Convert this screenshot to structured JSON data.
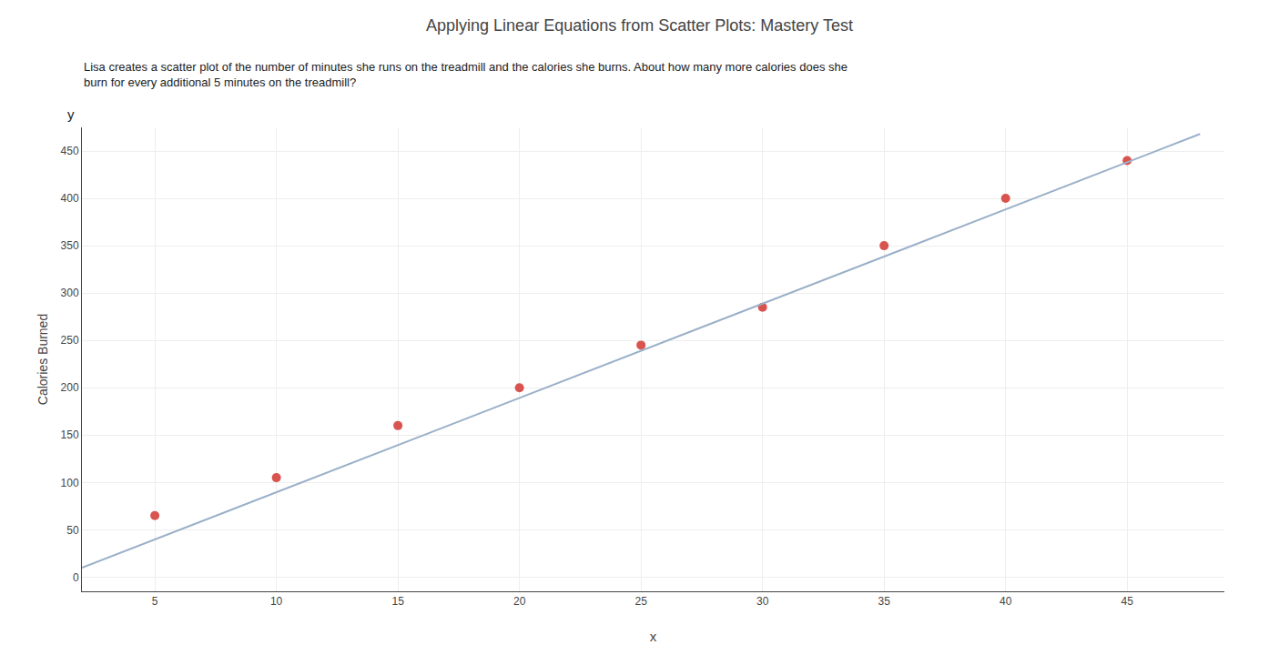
{
  "chart_data": {
    "type": "scatter",
    "title": "Applying Linear Equations from Scatter Plots: Mastery Test",
    "subtitle": [
      "Lisa creates a scatter plot of the number of minutes she runs on the treadmill and the calories she burns. About how many more calories does she",
      "burn for every additional 5 minutes on the treadmill?"
    ],
    "x_label": "x",
    "y_label": "Calories Burned",
    "annotations": [
      "y"
    ],
    "xlim": [
      2,
      49
    ],
    "ylim": [
      -15,
      475
    ],
    "xticks": [
      5,
      10,
      15,
      20,
      25,
      30,
      35,
      40,
      45
    ],
    "yticks": [
      0,
      50,
      100,
      150,
      200,
      250,
      300,
      350,
      400,
      450
    ],
    "grid": true,
    "series": [
      {
        "type": "scatter",
        "marker": "circle",
        "color": "#d9534f",
        "x": [
          5,
          10,
          15,
          20,
          25,
          30,
          35,
          40,
          45
        ],
        "values": [
          65,
          105,
          160,
          200,
          245,
          285,
          350,
          400,
          440
        ]
      },
      {
        "type": "line",
        "line_style": "solid",
        "color": "#9ab0c8",
        "x": [
          2,
          48
        ],
        "values": [
          10,
          468
        ]
      }
    ]
  }
}
